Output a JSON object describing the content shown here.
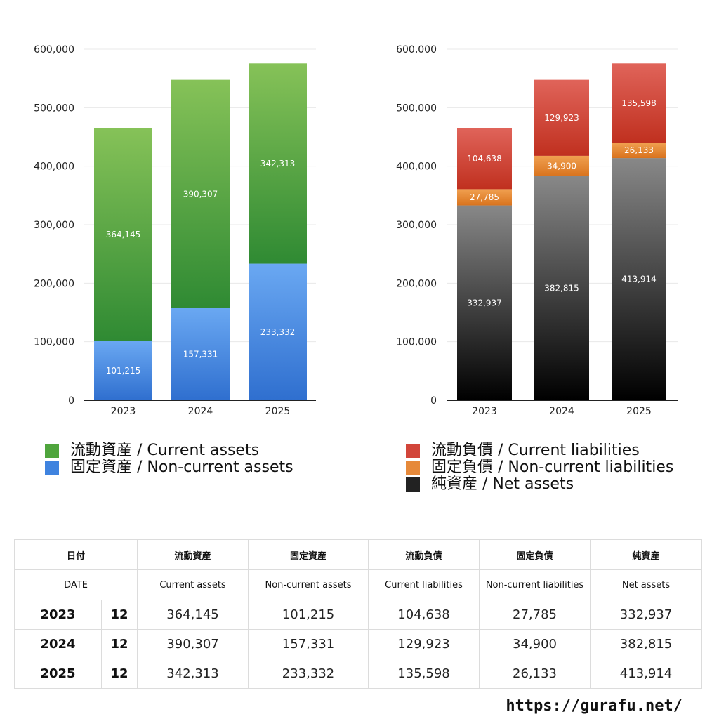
{
  "chart_data": [
    {
      "type": "bar",
      "stacked": true,
      "categories": [
        "2023",
        "2024",
        "2025"
      ],
      "ylim": [
        0,
        600000
      ],
      "yticks": [
        "0",
        "100,000",
        "200,000",
        "300,000",
        "400,000",
        "500,000",
        "600,000"
      ],
      "grid": true,
      "legend_position": "bottom",
      "series": [
        {
          "name": "固定資産 / Non-current assets",
          "values": [
            101215,
            157331,
            233332
          ],
          "labels": [
            "101,215",
            "157,331",
            "233,332"
          ],
          "color_top": "#6aa8f2",
          "color_bottom": "#2f6fcf"
        },
        {
          "name": "流動資産 / Current assets",
          "values": [
            364145,
            390307,
            342313
          ],
          "labels": [
            "364,145",
            "390,307",
            "342,313"
          ],
          "color_top": "#86c258",
          "color_bottom": "#2f8a33"
        }
      ]
    },
    {
      "type": "bar",
      "stacked": true,
      "categories": [
        "2023",
        "2024",
        "2025"
      ],
      "ylim": [
        0,
        600000
      ],
      "yticks": [
        "0",
        "100,000",
        "200,000",
        "300,000",
        "400,000",
        "500,000",
        "600,000"
      ],
      "grid": true,
      "legend_position": "bottom",
      "series": [
        {
          "name": "純資産 / Net assets",
          "values": [
            332937,
            382815,
            413914
          ],
          "labels": [
            "332,937",
            "382,815",
            "413,914"
          ],
          "color_top": "#888888",
          "color_bottom": "#000000"
        },
        {
          "name": "固定負債 / Non-current liabilities",
          "values": [
            27785,
            34900,
            26133
          ],
          "labels": [
            "27,785",
            "34,900",
            "26,133"
          ],
          "color_top": "#f0a050",
          "color_bottom": "#d9731d"
        },
        {
          "name": "流動負債 / Current liabilities",
          "values": [
            104638,
            129923,
            135598
          ],
          "labels": [
            "104,638",
            "129,923",
            "135,598"
          ],
          "color_top": "#e0645a",
          "color_bottom": "#c0301f"
        }
      ]
    }
  ],
  "legend_left": [
    {
      "label": "流動資産 / Current assets",
      "color": "#4fa53d"
    },
    {
      "label": "固定資産 / Non-current assets",
      "color": "#3f83df"
    }
  ],
  "legend_right": [
    {
      "label": "流動負債 / Current liabilities",
      "color": "#d2453a"
    },
    {
      "label": "固定負債 / Non-current liabilities",
      "color": "#e6893a"
    },
    {
      "label": "純資産 / Net assets",
      "color": "#222222"
    }
  ],
  "table": {
    "header_jp": {
      "date": "日付",
      "ca": "流動資産",
      "nca": "固定資産",
      "cl": "流動負債",
      "ncl": "固定負債",
      "na": "純資産"
    },
    "header_en": {
      "date": "DATE",
      "ca": "Current assets",
      "nca": "Non-current assets",
      "cl": "Current liabilities",
      "ncl": "Non-current liabilities",
      "na": "Net assets"
    },
    "rows": [
      {
        "year": "2023",
        "month": "12",
        "ca": "364,145",
        "nca": "101,215",
        "cl": "104,638",
        "ncl": "27,785",
        "na": "332,937"
      },
      {
        "year": "2024",
        "month": "12",
        "ca": "390,307",
        "nca": "157,331",
        "cl": "129,923",
        "ncl": "34,900",
        "na": "382,815"
      },
      {
        "year": "2025",
        "month": "12",
        "ca": "342,313",
        "nca": "233,332",
        "cl": "135,598",
        "ncl": "26,133",
        "na": "413,914"
      }
    ]
  },
  "site": "https://gurafu.net/"
}
